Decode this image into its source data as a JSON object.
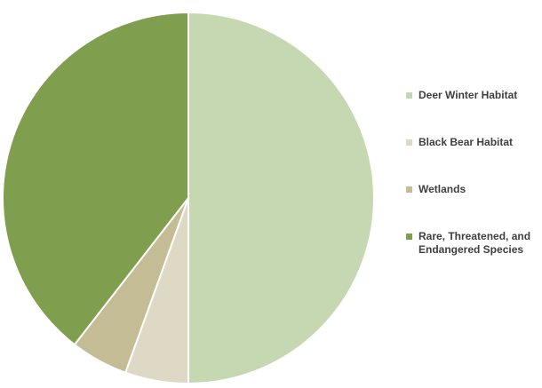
{
  "chart_data": {
    "type": "pie",
    "series": [
      {
        "values": [
          50,
          5.5,
          5,
          39.5
        ],
        "colors": [
          "#c6d8b1",
          "#ddd9c4",
          "#c3bc95",
          "#7f9f4e"
        ]
      }
    ],
    "categories": [
      "Deer Winter Habitat",
      "Black Bear Habitat",
      "Wetlands",
      "Rare, Threatened, and Endangered Species"
    ],
    "title": "",
    "legend_position": "right",
    "start_angle": "12-o'clock",
    "direction": "clockwise"
  },
  "legend": {
    "items": [
      {
        "label": "Deer Winter Habitat",
        "color": "#c6d8b1"
      },
      {
        "label": "Black Bear Habitat",
        "color": "#ddd9c4"
      },
      {
        "label": "Wetlands",
        "color": "#c3bc95"
      },
      {
        "label": "Rare, Threatened, and Endangered Species",
        "color": "#7f9f4e"
      }
    ]
  }
}
